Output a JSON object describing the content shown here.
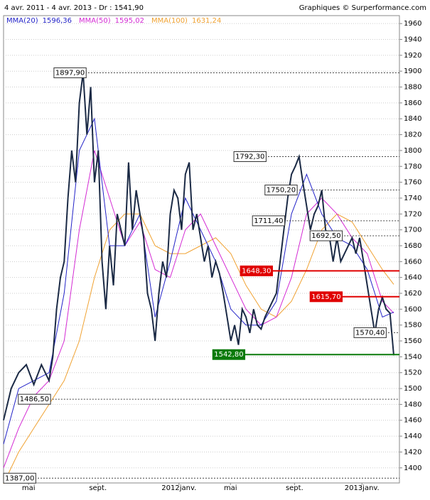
{
  "chart_data": {
    "type": "line",
    "title": "4 avr. 2011 - 4 avr. 2013 - Dr : 1541,90",
    "source": "Graphiques © Surperformance.com",
    "xlim": [
      0,
      104.5
    ],
    "xticks": [
      {
        "value": 6.6,
        "label": "mai"
      },
      {
        "value": 24.9,
        "label": "sept."
      },
      {
        "value": 46.3,
        "label": "2012janv."
      },
      {
        "value": 59.9,
        "label": "mai"
      },
      {
        "value": 76.8,
        "label": "sept."
      },
      {
        "value": 94.6,
        "label": "2013janv."
      }
    ],
    "ylim": [
      1381,
      1970
    ],
    "yticks": [
      1400,
      1420,
      1440,
      1460,
      1480,
      1500,
      1520,
      1540,
      1560,
      1580,
      1600,
      1620,
      1640,
      1660,
      1680,
      1700,
      1720,
      1740,
      1760,
      1780,
      1800,
      1820,
      1840,
      1860,
      1880,
      1900,
      1920,
      1940,
      1960
    ],
    "grid": true,
    "series": [
      {
        "color": "#1b2a45",
        "x": [
          0,
          2,
          4,
          6,
          8,
          10,
          12,
          13,
          14,
          15,
          16,
          17,
          18,
          19,
          20,
          21,
          22,
          23,
          24,
          25,
          26,
          27,
          28,
          29,
          30,
          31,
          32,
          33,
          34,
          35,
          36,
          37,
          38,
          39,
          40,
          41,
          42,
          43,
          44,
          45,
          46,
          47,
          48,
          49,
          50,
          51,
          52,
          53,
          54,
          55,
          56,
          57,
          58,
          59,
          60,
          61,
          62,
          63,
          64,
          65,
          66,
          67,
          68,
          69,
          70,
          71,
          72,
          73,
          74,
          75,
          76,
          77,
          78,
          79,
          80,
          81,
          82,
          83,
          84,
          85,
          86,
          87,
          88,
          89,
          90,
          91,
          92,
          93,
          94,
          95,
          96,
          97,
          98,
          99,
          100,
          101,
          102,
          103
        ],
        "values": [
          1460,
          1500,
          1520,
          1530,
          1505,
          1530,
          1510,
          1540,
          1600,
          1640,
          1660,
          1740,
          1800,
          1760,
          1860,
          1897.9,
          1820,
          1880,
          1760,
          1800,
          1660,
          1600,
          1680,
          1630,
          1720,
          1700,
          1680,
          1785,
          1700,
          1750,
          1720,
          1690,
          1620,
          1600,
          1560,
          1620,
          1660,
          1640,
          1720,
          1750,
          1740,
          1700,
          1770,
          1785,
          1700,
          1720,
          1690,
          1660,
          1680,
          1640,
          1660,
          1645,
          1620,
          1590,
          1560,
          1580,
          1555,
          1600,
          1590,
          1570,
          1600,
          1580,
          1575,
          1590,
          1600,
          1610,
          1620,
          1660,
          1700,
          1740,
          1770,
          1780,
          1792.3,
          1760,
          1730,
          1700,
          1720,
          1730,
          1750,
          1700,
          1692,
          1660,
          1690,
          1660,
          1670,
          1680,
          1690,
          1670,
          1690,
          1660,
          1630,
          1600,
          1570,
          1600,
          1615,
          1600,
          1595,
          1541.9
        ]
      },
      {
        "name": "MMA(20)",
        "color": "#2323c8",
        "last": {
          "value": 1596.36,
          "label": "1596,36"
        },
        "x": [
          0,
          4,
          8,
          12,
          16,
          20,
          24,
          28,
          32,
          36,
          40,
          44,
          48,
          52,
          56,
          60,
          64,
          68,
          72,
          76,
          80,
          84,
          88,
          92,
          96,
          100,
          103
        ],
        "values": [
          1430,
          1500,
          1510,
          1520,
          1620,
          1800,
          1840,
          1680,
          1680,
          1720,
          1590,
          1660,
          1740,
          1700,
          1660,
          1600,
          1580,
          1580,
          1610,
          1720,
          1770,
          1720,
          1690,
          1680,
          1650,
          1590,
          1596.36
        ]
      },
      {
        "name": "MMA(50)",
        "color": "#d42bd4",
        "last": {
          "value": 1595.02,
          "label": "1595,02"
        },
        "x": [
          0,
          4,
          8,
          12,
          16,
          20,
          24,
          28,
          32,
          36,
          40,
          44,
          48,
          52,
          56,
          60,
          64,
          68,
          72,
          76,
          80,
          84,
          88,
          92,
          96,
          100,
          103
        ],
        "values": [
          1400,
          1450,
          1490,
          1510,
          1560,
          1700,
          1800,
          1740,
          1680,
          1710,
          1650,
          1640,
          1700,
          1720,
          1680,
          1640,
          1600,
          1580,
          1590,
          1640,
          1720,
          1740,
          1720,
          1690,
          1670,
          1610,
          1595.02
        ]
      },
      {
        "name": "MMA(100)",
        "color": "#f0a232",
        "last": {
          "value": 1631.24,
          "label": "1631,24"
        },
        "x": [
          0,
          4,
          8,
          12,
          16,
          20,
          24,
          28,
          32,
          36,
          40,
          44,
          48,
          52,
          56,
          60,
          64,
          68,
          72,
          76,
          80,
          84,
          88,
          92,
          96,
          100,
          103
        ],
        "values": [
          1380,
          1420,
          1450,
          1480,
          1510,
          1560,
          1640,
          1700,
          1720,
          1720,
          1680,
          1670,
          1670,
          1680,
          1690,
          1670,
          1630,
          1600,
          1590,
          1610,
          1650,
          1700,
          1720,
          1710,
          1680,
          1650,
          1631.24
        ]
      }
    ],
    "levels": [
      {
        "value": 1897.9,
        "label": "1897,90",
        "x": 13.3,
        "color": "#ffffff"
      },
      {
        "value": 1792.3,
        "label": "1792,30",
        "x": 60.8,
        "color": "#ffffff"
      },
      {
        "value": 1750.2,
        "label": "1750,20",
        "x": 69,
        "color": "#ffffff"
      },
      {
        "value": 1711.4,
        "label": "1711,40",
        "x": 65.7,
        "color": "#ffffff"
      },
      {
        "value": 1692.5,
        "label": "1692,50",
        "x": 80.9,
        "color": "#ffffff"
      },
      {
        "value": 1648.3,
        "label": "1648,30",
        "x": 62.5,
        "color": "#e00000"
      },
      {
        "value": 1615.7,
        "label": "1615,70",
        "x": 80.9,
        "color": "#e00000"
      },
      {
        "value": 1570.4,
        "label": "1570,40",
        "x": 92.5,
        "color": "#ffffff"
      },
      {
        "value": 1542.8,
        "label": "1542,80",
        "x": 55.2,
        "color": "#0a7a0a"
      },
      {
        "value": 1486.5,
        "label": "1486,50",
        "x": 3.9,
        "color": "#ffffff"
      },
      {
        "value": 1387,
        "label": "1387,00",
        "x": 0,
        "color": "#ffffff"
      }
    ]
  }
}
